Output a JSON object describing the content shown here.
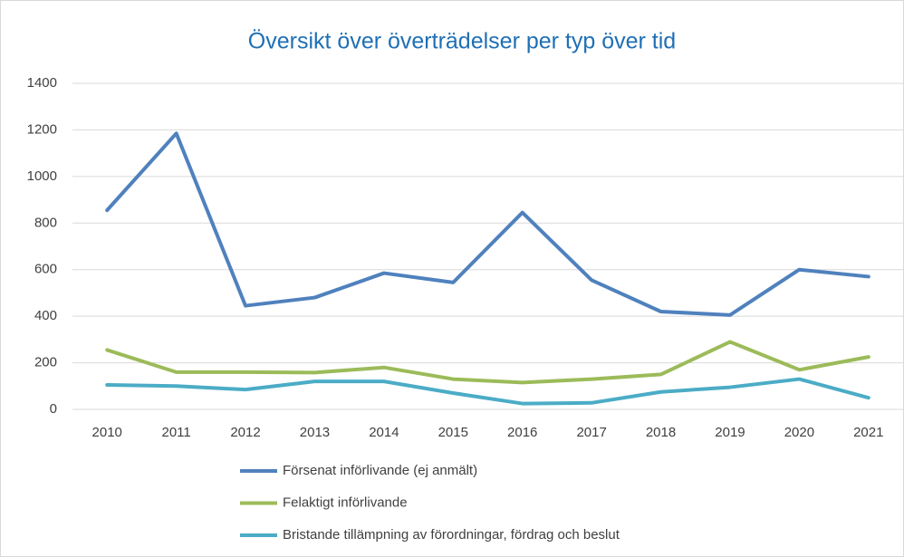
{
  "chart_data": {
    "type": "line",
    "title": "Översikt över överträdelser per typ över tid",
    "categories": [
      "2010",
      "2011",
      "2012",
      "2013",
      "2014",
      "2015",
      "2016",
      "2017",
      "2018",
      "2019",
      "2020",
      "2021"
    ],
    "series": [
      {
        "name": "Försenat införlivande (ej anmält)",
        "color": "#4f81bd",
        "values": [
          855,
          1185,
          445,
          480,
          585,
          545,
          845,
          555,
          420,
          405,
          600,
          570
        ]
      },
      {
        "name": "Felaktigt införlivande",
        "color": "#9bbb59",
        "values": [
          255,
          160,
          160,
          158,
          180,
          130,
          115,
          130,
          150,
          290,
          170,
          225
        ]
      },
      {
        "name": "Bristande tillämpning av förordningar, fördrag och beslut",
        "color": "#4bacc6",
        "values": [
          105,
          100,
          85,
          120,
          120,
          70,
          25,
          28,
          75,
          95,
          130,
          50
        ]
      }
    ],
    "ylim": [
      0,
      1400
    ],
    "yticks": [
      0,
      200,
      400,
      600,
      800,
      1000,
      1200,
      1400
    ],
    "grid": true,
    "legend": "bottom"
  }
}
